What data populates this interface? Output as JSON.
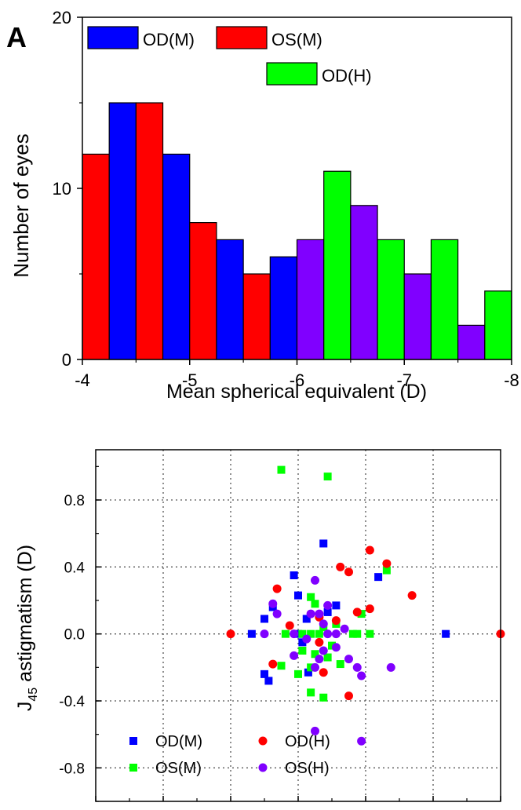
{
  "chart_data": [
    {
      "type": "bar",
      "panel_label": "A",
      "xlabel": "Mean spherical equivalent (D)",
      "ylabel": "Number of eyes",
      "xlim": [
        -4,
        -8
      ],
      "ylim": [
        0,
        20
      ],
      "xticks": [
        "-4",
        "-5",
        "-6",
        "-7",
        "-8"
      ],
      "yticks": [
        "0",
        "10",
        "20"
      ],
      "legend": [
        {
          "name": "OD(M)",
          "color": "#0000ff"
        },
        {
          "name": "OS(M)",
          "color": "#ff0000"
        },
        {
          "name": "OD(H)",
          "color": "#00ff00"
        }
      ],
      "series_colors": {
        "OD(M)": "#0000ff",
        "OS(M)": "#ff0000",
        "OD(H)": "#00ff00",
        "OS(H)": "#8000ff"
      },
      "bars": [
        {
          "series": "OS(M)",
          "x0": -4.0,
          "x1": -4.25,
          "value": 12
        },
        {
          "series": "OD(M)",
          "x0": -4.25,
          "x1": -4.5,
          "value": 15
        },
        {
          "series": "OS(M)",
          "x0": -4.5,
          "x1": -4.75,
          "value": 15
        },
        {
          "series": "OD(M)",
          "x0": -4.75,
          "x1": -5.0,
          "value": 12
        },
        {
          "series": "OS(M)",
          "x0": -5.0,
          "x1": -5.25,
          "value": 8
        },
        {
          "series": "OD(M)",
          "x0": -5.25,
          "x1": -5.5,
          "value": 7
        },
        {
          "series": "OS(M)",
          "x0": -5.5,
          "x1": -5.75,
          "value": 5
        },
        {
          "series": "OD(M)",
          "x0": -5.75,
          "x1": -6.0,
          "value": 6
        },
        {
          "series": "OS(H)",
          "x0": -6.0,
          "x1": -6.25,
          "value": 7
        },
        {
          "series": "OD(H)",
          "x0": -6.25,
          "x1": -6.5,
          "value": 11
        },
        {
          "series": "OS(H)",
          "x0": -6.5,
          "x1": -6.75,
          "value": 9
        },
        {
          "series": "OD(H)",
          "x0": -6.75,
          "x1": -7.0,
          "value": 7
        },
        {
          "series": "OS(H)",
          "x0": -7.0,
          "x1": -7.25,
          "value": 5
        },
        {
          "series": "OD(H)",
          "x0": -7.25,
          "x1": -7.5,
          "value": 7
        },
        {
          "series": "OS(H)",
          "x0": -7.5,
          "x1": -7.75,
          "value": 2
        },
        {
          "series": "OD(H)",
          "x0": -7.75,
          "x1": -8.0,
          "value": 4
        }
      ]
    },
    {
      "type": "scatter",
      "ylabel_main": "J",
      "ylabel_sub": "45",
      "ylabel_rest": " astigmatism (D)",
      "xlim": [
        -2.4,
        2.4
      ],
      "ylim": [
        -1.0,
        1.1
      ],
      "xticks": [
        "-2.4",
        "-1.6",
        "-0.8",
        "0.0",
        "0.8",
        "1.6",
        "2.4"
      ],
      "yticks": [
        "-0.8",
        "-0.4",
        "0.0",
        "0.4",
        "0.8"
      ],
      "xtick_values": [
        -2.4,
        -1.6,
        -0.8,
        0.0,
        0.8,
        1.6,
        2.4
      ],
      "ytick_values": [
        -0.8,
        -0.4,
        0.0,
        0.4,
        0.8
      ],
      "grid": true,
      "series": [
        {
          "name": "OD(M)",
          "marker": "square",
          "color": "#0000ff",
          "points": [
            [
              -0.55,
              0.0
            ],
            [
              -0.4,
              0.09
            ],
            [
              -0.3,
              0.16
            ],
            [
              -0.05,
              0.35
            ],
            [
              0.0,
              0.23
            ],
            [
              0.0,
              0.0
            ],
            [
              0.1,
              0.09
            ],
            [
              0.3,
              0.54
            ],
            [
              0.35,
              0.13
            ],
            [
              0.45,
              0.17
            ],
            [
              0.95,
              0.34
            ],
            [
              0.12,
              -0.23
            ],
            [
              -0.4,
              -0.24
            ],
            [
              -0.35,
              -0.28
            ],
            [
              0.05,
              -0.05
            ],
            [
              1.75,
              0.0
            ]
          ]
        },
        {
          "name": "OS(M)",
          "marker": "square",
          "color": "#00ff00",
          "points": [
            [
              -0.2,
              0.98
            ],
            [
              0.35,
              0.94
            ],
            [
              -0.15,
              0.0
            ],
            [
              0.15,
              0.22
            ],
            [
              0.2,
              0.18
            ],
            [
              0.3,
              0.04
            ],
            [
              0.05,
              0.0
            ],
            [
              0.15,
              0.0
            ],
            [
              0.25,
              0.0
            ],
            [
              0.45,
              0.06
            ],
            [
              0.5,
              -0.18
            ],
            [
              0.7,
              0.0
            ],
            [
              0.75,
              0.12
            ],
            [
              0.85,
              0.0
            ],
            [
              1.05,
              0.38
            ],
            [
              0.65,
              0.0
            ],
            [
              0.3,
              -0.38
            ],
            [
              0.15,
              -0.35
            ],
            [
              -0.2,
              -0.19
            ],
            [
              0.0,
              -0.24
            ],
            [
              0.15,
              -0.2
            ],
            [
              0.35,
              -0.14
            ],
            [
              0.4,
              -0.07
            ],
            [
              0.05,
              -0.1
            ],
            [
              0.2,
              -0.12
            ]
          ]
        },
        {
          "name": "OD(H)",
          "marker": "circle",
          "color": "#ff0000",
          "points": [
            [
              -0.8,
              0.0
            ],
            [
              -0.3,
              -0.18
            ],
            [
              -0.25,
              0.27
            ],
            [
              -0.1,
              0.05
            ],
            [
              0.25,
              -0.05
            ],
            [
              0.25,
              0.1
            ],
            [
              0.5,
              0.4
            ],
            [
              0.6,
              0.37
            ],
            [
              0.7,
              0.13
            ],
            [
              0.85,
              0.5
            ],
            [
              0.85,
              0.15
            ],
            [
              1.05,
              0.42
            ],
            [
              1.35,
              0.23
            ],
            [
              0.6,
              -0.37
            ],
            [
              0.45,
              0.08
            ],
            [
              2.4,
              0.0
            ],
            [
              0.3,
              -0.23
            ]
          ]
        },
        {
          "name": "OS(H)",
          "marker": "circle",
          "color": "#8000ff",
          "points": [
            [
              -0.3,
              0.18
            ],
            [
              -0.25,
              0.12
            ],
            [
              -0.4,
              0.0
            ],
            [
              -0.05,
              0.0
            ],
            [
              0.15,
              0.12
            ],
            [
              0.2,
              0.32
            ],
            [
              0.25,
              0.12
            ],
            [
              0.35,
              0.17
            ],
            [
              0.45,
              0.0
            ],
            [
              0.55,
              0.03
            ],
            [
              0.7,
              -0.2
            ],
            [
              0.75,
              -0.25
            ],
            [
              0.6,
              -0.15
            ],
            [
              0.45,
              -0.08
            ],
            [
              1.1,
              -0.2
            ],
            [
              0.3,
              0.06
            ],
            [
              0.2,
              -0.58
            ],
            [
              0.75,
              -0.64
            ],
            [
              0.1,
              -0.03
            ],
            [
              0.3,
              -0.1
            ],
            [
              0.35,
              0.0
            ],
            [
              0.25,
              -0.15
            ],
            [
              -0.05,
              -0.13
            ],
            [
              0.2,
              -0.2
            ]
          ]
        }
      ],
      "legend": [
        {
          "name": "OD(M)",
          "marker": "square",
          "color": "#0000ff"
        },
        {
          "name": "OD(H)",
          "marker": "circle",
          "color": "#ff0000"
        },
        {
          "name": "OS(M)",
          "marker": "square",
          "color": "#00ff00"
        },
        {
          "name": "OS(H)",
          "marker": "circle",
          "color": "#8000ff"
        }
      ]
    }
  ]
}
